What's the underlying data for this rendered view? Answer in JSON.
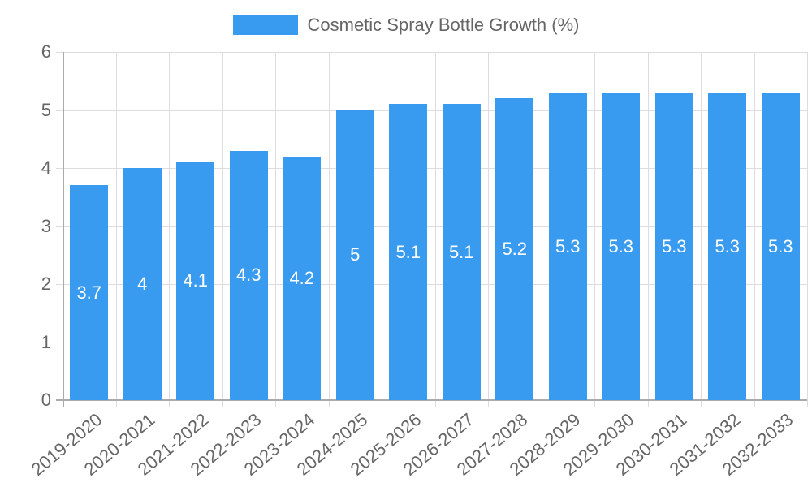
{
  "chart_data": {
    "type": "bar",
    "title": "",
    "xlabel": "",
    "ylabel": "",
    "ylim": [
      0,
      6
    ],
    "yticks": [
      0,
      1,
      2,
      3,
      4,
      5,
      6
    ],
    "grid": true,
    "legend_position": "top",
    "categories": [
      "2019-2020",
      "2020-2021",
      "2021-2022",
      "2022-2023",
      "2023-2024",
      "2024-2025",
      "2025-2026",
      "2026-2027",
      "2027-2028",
      "2028-2029",
      "2029-2030",
      "2030-2031",
      "2031-2032",
      "2032-2033"
    ],
    "series": [
      {
        "name": "Cosmetic Spray Bottle Growth (%)",
        "color": "#399BF0",
        "values": [
          3.7,
          4,
          4.1,
          4.3,
          4.2,
          5,
          5.1,
          5.1,
          5.2,
          5.3,
          5.3,
          5.3,
          5.3,
          5.3
        ]
      }
    ],
    "data_labels": [
      "3.7",
      "4",
      "4.1",
      "4.3",
      "4.2",
      "5",
      "5.1",
      "5.1",
      "5.2",
      "5.3",
      "5.3",
      "5.3",
      "5.3",
      "5.3"
    ]
  },
  "legend": {
    "label": "Cosmetic Spray Bottle Growth (%)",
    "color": "#399BF0"
  }
}
